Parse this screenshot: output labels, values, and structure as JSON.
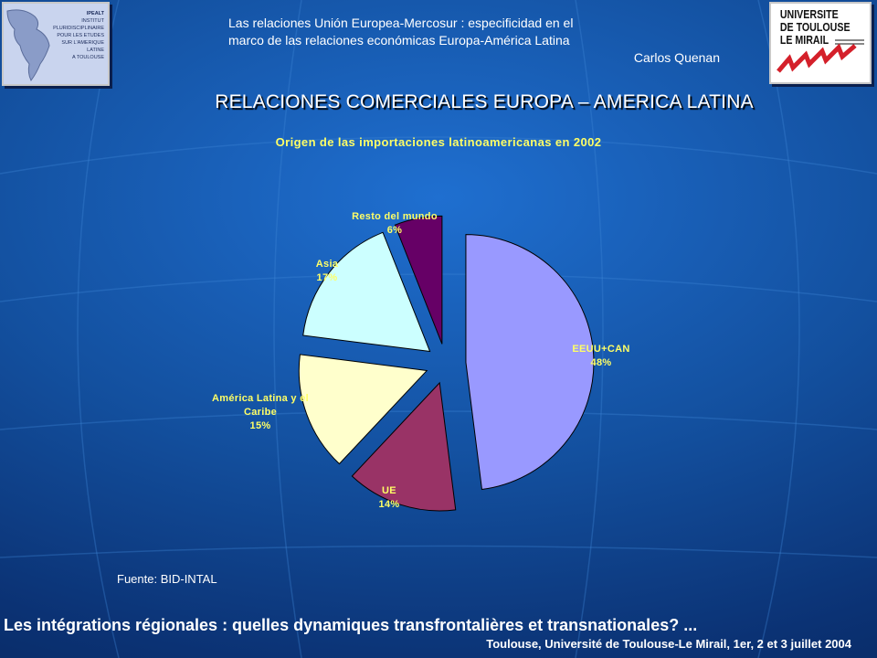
{
  "header": {
    "line1": "Las relaciones Unión Europea-Mercosur : especificidad en el",
    "line2": "marco de las relaciones económicas Europa-América Latina",
    "author": "Carlos Quenan"
  },
  "logos": {
    "left": {
      "icon": "ipealt-map-logo",
      "text_lines": [
        "IPEALT",
        "INSTITUT",
        "PLURIDISCIPLINAIRE",
        "POUR LES ETUDES",
        "SUR L'AMERIQUE",
        "LATINE",
        "A TOULOUSE"
      ]
    },
    "right": {
      "icon": "university-logo",
      "text_lines": [
        "UNIVERSITE",
        "DE TOULOUSE",
        "LE MIRAIL"
      ]
    }
  },
  "main_title": "RELACIONES COMERCIALES EUROPA – AMERICA LATINA",
  "source": "Fuente: BID-INTAL",
  "footer": {
    "main": "Les intégrations régionales : quelles dynamiques transfrontalières et transnationales? ...",
    "sub": "Toulouse, Université de Toulouse-Le Mirail, 1er, 2 et 3 juillet 2004"
  },
  "chart_data": {
    "type": "pie",
    "title": "Origen de las importaciones latinoamericanas en 2002",
    "slices": [
      {
        "label": "EEUU+CAN",
        "value": 48,
        "value_label": "48%",
        "color": "#9999ff"
      },
      {
        "label": "UE",
        "value": 14,
        "value_label": "14%",
        "color": "#993366"
      },
      {
        "label": "América Latina y el Caribe",
        "value": 15,
        "value_label": "15%",
        "color": "#ffffcc"
      },
      {
        "label": "Asia",
        "value": 17,
        "value_label": "17%",
        "color": "#ccffff"
      },
      {
        "label": "Resto del mundo",
        "value": 6,
        "value_label": "6%",
        "color": "#660066"
      }
    ],
    "exploded": true,
    "start_angle": "12 o'clock, clockwise"
  },
  "colors": {
    "chart_title": "#ffff66",
    "slice_label": "#ffff66"
  }
}
